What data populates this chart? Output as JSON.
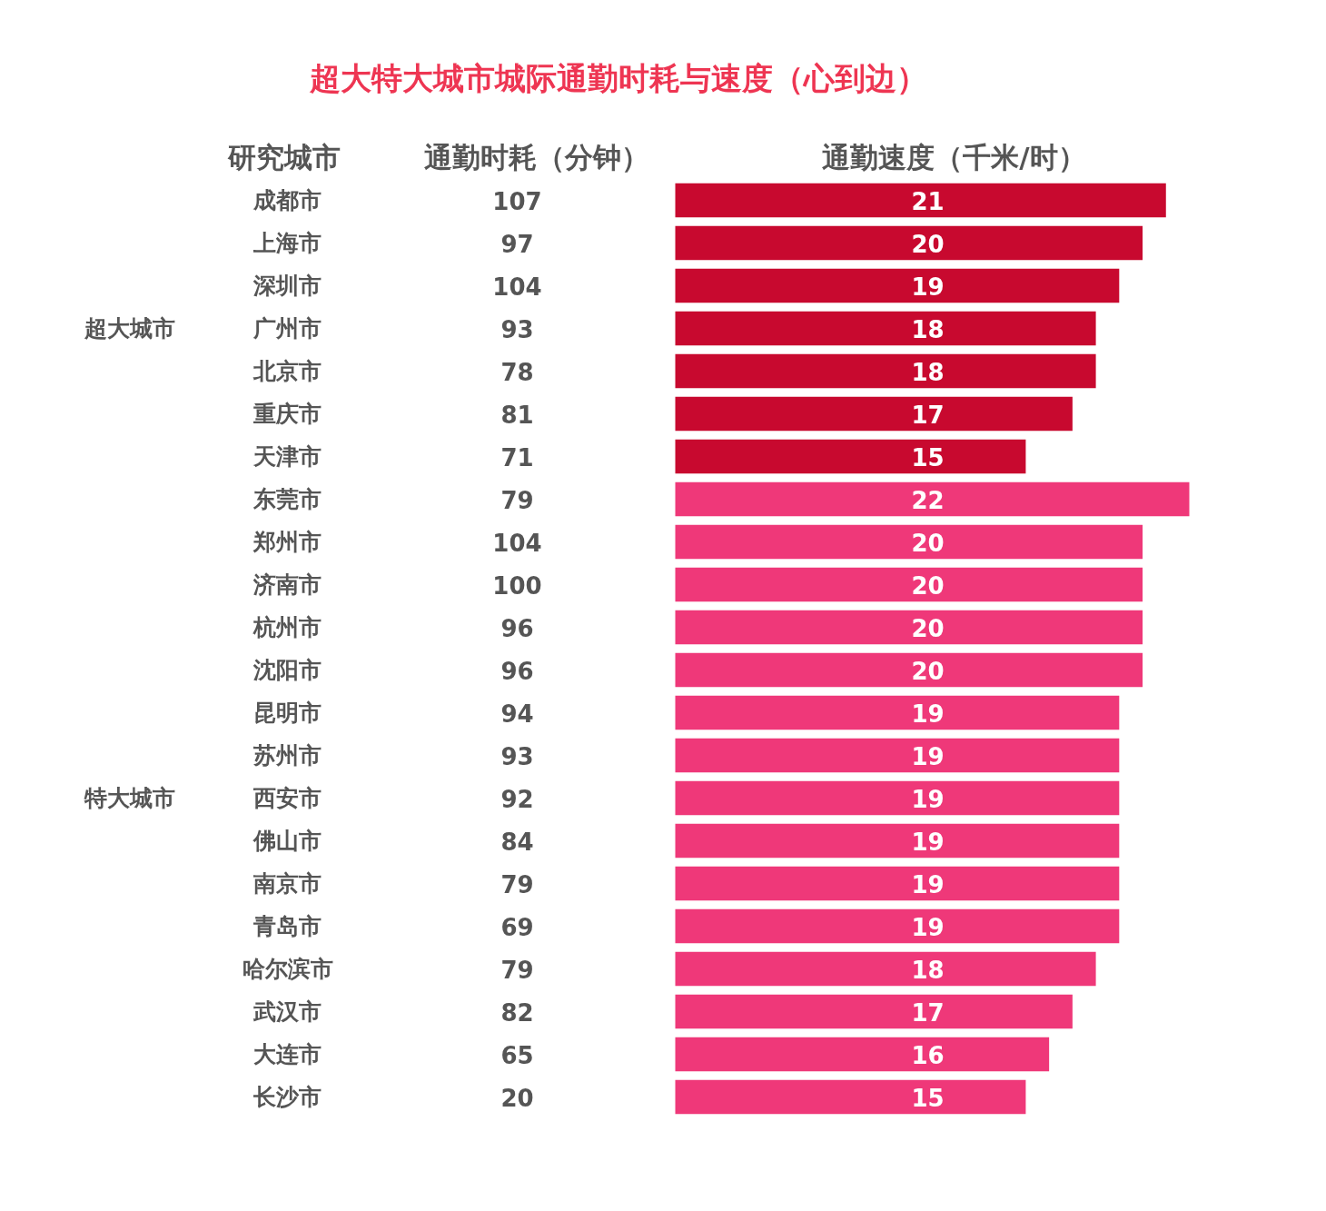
{
  "chart_data": {
    "type": "bar",
    "orientation": "horizontal",
    "title": "超大特大城市城际通勤时耗与速度（心到边）",
    "categories": [
      "成都市",
      "上海市",
      "深圳市",
      "广州市",
      "北京市",
      "重庆市",
      "天津市",
      "东莞市",
      "郑州市",
      "济南市",
      "杭州市",
      "沈阳市",
      "昆明市",
      "苏州市",
      "西安市",
      "佛山市",
      "南京市",
      "青岛市",
      "哈尔滨市",
      "武汉市",
      "大连市",
      "长沙市"
    ],
    "series": [
      {
        "name": "通勤速度（千米/时）",
        "values": [
          21,
          20,
          19,
          18,
          18,
          17,
          15,
          22,
          20,
          20,
          20,
          20,
          19,
          19,
          19,
          19,
          19,
          19,
          18,
          17,
          16,
          15
        ],
        "colors": [
          "#c8092f",
          "#c8092f",
          "#c8092f",
          "#c8092f",
          "#c8092f",
          "#c8092f",
          "#c8092f",
          "#ef3879",
          "#ef3879",
          "#ef3879",
          "#ef3879",
          "#ef3879",
          "#ef3879",
          "#ef3879",
          "#ef3879",
          "#ef3879",
          "#ef3879",
          "#ef3879",
          "#ef3879",
          "#ef3879",
          "#ef3879",
          "#ef3879"
        ]
      }
    ],
    "data_labels": true,
    "annotations": [
      "研究城市",
      "通勤时耗（分钟）",
      "超大城市",
      "特大城市",
      "107",
      "97",
      "104",
      "93",
      "78",
      "81",
      "71",
      "79",
      "104",
      "100",
      "96",
      "96",
      "94",
      "93",
      "92",
      "84",
      "79",
      "69",
      "79",
      "82",
      "65",
      "20"
    ]
  }
}
